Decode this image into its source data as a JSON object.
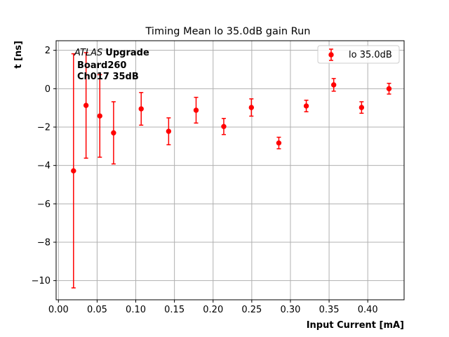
{
  "chart_data": {
    "type": "scatter",
    "title": "Timing Mean lo 35.0dB gain Run",
    "xlabel": "Input Current [mA]",
    "ylabel": "t [ns]",
    "xlim": [
      -0.003,
      0.447
    ],
    "ylim": [
      -11.0,
      2.5
    ],
    "xticks": [
      0.0,
      0.05,
      0.1,
      0.15,
      0.2,
      0.25,
      0.3,
      0.35,
      0.4
    ],
    "xtick_labels": [
      "0.00",
      "0.05",
      "0.10",
      "0.15",
      "0.20",
      "0.25",
      "0.30",
      "0.35",
      "0.40"
    ],
    "yticks": [
      -10,
      -8,
      -6,
      -4,
      -2,
      0,
      2
    ],
    "ytick_labels": [
      "−10",
      "−8",
      "−6",
      "−4",
      "−2",
      "0",
      "2"
    ],
    "grid": true,
    "legend_position": "top-right",
    "annotation": {
      "atlas": "ATLAS",
      "upgrade": "Upgrade",
      "line2": "Board260",
      "line3": "Ch017 35dB"
    },
    "series": [
      {
        "name": "lo 35.0dB",
        "color": "#ff0000",
        "x": [
          0.0195,
          0.0357,
          0.0535,
          0.0713,
          0.107,
          0.1425,
          0.178,
          0.2138,
          0.2495,
          0.285,
          0.3205,
          0.356,
          0.392,
          0.4275
        ],
        "y": [
          -4.28,
          -0.87,
          -1.42,
          -2.3,
          -1.05,
          -2.22,
          -1.12,
          -1.97,
          -0.98,
          -2.83,
          -0.9,
          0.2,
          -0.98,
          0.0
        ],
        "yerr": [
          6.1,
          2.75,
          2.15,
          1.62,
          0.85,
          0.7,
          0.67,
          0.42,
          0.45,
          0.3,
          0.3,
          0.33,
          0.3,
          0.28
        ]
      }
    ]
  }
}
